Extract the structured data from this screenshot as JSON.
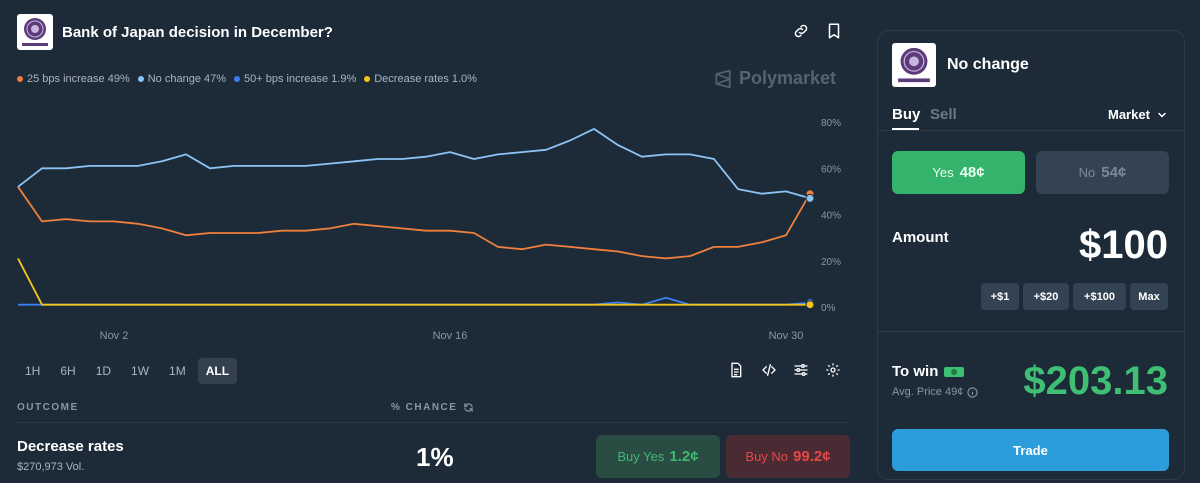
{
  "market": {
    "title": "Bank of Japan decision in December?",
    "logo_text": "BANK OF JAPAN"
  },
  "header_icons": [
    "link-icon",
    "bookmark-icon"
  ],
  "legend": [
    {
      "label": "25 bps increase 49%",
      "color": "#f0803c"
    },
    {
      "label": "No change 47%",
      "color": "#8cc4f5"
    },
    {
      "label": "50+ bps increase 1.9%",
      "color": "#3b7ff2"
    },
    {
      "label": "Decrease rates 1.0%",
      "color": "#f5c518"
    }
  ],
  "brand": "Polymarket",
  "chart_data": {
    "type": "line",
    "x": [
      "Oct 29",
      "Oct 30",
      "Oct 31",
      "Nov 1",
      "Nov 2",
      "Nov 3",
      "Nov 4",
      "Nov 5",
      "Nov 6",
      "Nov 7",
      "Nov 8",
      "Nov 9",
      "Nov 10",
      "Nov 11",
      "Nov 12",
      "Nov 13",
      "Nov 14",
      "Nov 15",
      "Nov 16",
      "Nov 17",
      "Nov 18",
      "Nov 19",
      "Nov 20",
      "Nov 21",
      "Nov 22",
      "Nov 23",
      "Nov 24",
      "Nov 25",
      "Nov 26",
      "Nov 27",
      "Nov 28",
      "Nov 29",
      "Nov 30",
      "Dec 1"
    ],
    "x_tick_labels": [
      "Nov 2",
      "Nov 16",
      "Nov 30"
    ],
    "y_ticks": [
      "80%",
      "60%",
      "40%",
      "20%",
      "0%"
    ],
    "ylim": [
      0,
      80
    ],
    "grid": false,
    "series": [
      {
        "name": "25 bps increase",
        "color": "#f0803c",
        "values": [
          52,
          37,
          38,
          37,
          37,
          36,
          34,
          31,
          32,
          32,
          32,
          33,
          33,
          34,
          36,
          35,
          34,
          33,
          33,
          32,
          26,
          25,
          27,
          26,
          25,
          24,
          22,
          21,
          22,
          26,
          26,
          28,
          31,
          49
        ]
      },
      {
        "name": "No change",
        "color": "#8cc4f5",
        "values": [
          52,
          60,
          60,
          61,
          61,
          61,
          63,
          66,
          60,
          61,
          61,
          61,
          61,
          62,
          63,
          64,
          64,
          65,
          67,
          64,
          66,
          67,
          68,
          72,
          77,
          70,
          65,
          66,
          66,
          64,
          51,
          49,
          50,
          47
        ]
      },
      {
        "name": "50+ bps increase",
        "color": "#3b7ff2",
        "values": [
          1,
          1,
          1,
          1,
          1,
          1,
          1,
          1,
          1,
          1,
          1,
          1,
          1,
          1,
          1,
          1,
          1,
          1,
          1,
          1,
          1,
          1,
          1,
          1,
          1,
          2,
          1,
          4,
          1,
          1,
          1,
          1,
          1,
          1.9
        ]
      },
      {
        "name": "Decrease rates",
        "color": "#f5c518",
        "values": [
          21,
          1,
          1,
          1,
          1,
          1,
          1,
          1,
          1,
          1,
          1,
          1,
          1,
          1,
          1,
          1,
          1,
          1,
          1,
          1,
          1,
          1,
          1,
          1,
          1,
          1,
          1,
          1,
          1,
          1,
          1,
          1,
          1,
          1
        ]
      }
    ]
  },
  "ranges": [
    "1H",
    "6H",
    "1D",
    "1W",
    "1M",
    "ALL"
  ],
  "active_range": "ALL",
  "tool_icons": [
    "document-icon",
    "code-icon",
    "sliders-icon",
    "gear-icon"
  ],
  "table": {
    "outcome_header": "OUTCOME",
    "chance_header": "% CHANCE",
    "rows": [
      {
        "name": "Decrease rates",
        "volume": "$270,973 Vol.",
        "chance": "1%",
        "buy_yes": "Buy Yes",
        "yes_price": "1.2¢",
        "buy_no": "Buy No",
        "no_price": "99.2¢"
      }
    ]
  },
  "panel": {
    "outcome": "No change",
    "tab_buy": "Buy",
    "tab_sell": "Sell",
    "order_type": "Market",
    "yes_label": "Yes",
    "yes_price": "48¢",
    "no_label": "No",
    "no_price": "54¢",
    "amount_label": "Amount",
    "amount_value": "$100",
    "quick_amounts": [
      "+$1",
      "+$20",
      "+$100",
      "Max"
    ],
    "to_win_label": "To win",
    "avg_price": "Avg. Price 49¢",
    "to_win_value": "$203.13",
    "trade_label": "Trade"
  },
  "colors": {
    "background": "#1d2b39",
    "yes": "#33b36b",
    "no_text": "#e64848",
    "trade": "#2d9cdb",
    "win": "#3fbf73"
  }
}
